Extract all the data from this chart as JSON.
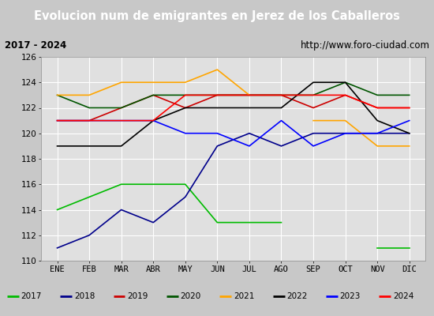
{
  "title": "Evolucion num de emigrantes en Jerez de los Caballeros",
  "subtitle_left": "2017 - 2024",
  "subtitle_right": "http://www.foro-ciudad.com",
  "months": [
    "ENE",
    "FEB",
    "MAR",
    "ABR",
    "MAY",
    "JUN",
    "JUL",
    "AGO",
    "SEP",
    "OCT",
    "NOV",
    "DIC"
  ],
  "ylim": [
    110,
    126
  ],
  "yticks": [
    110,
    112,
    114,
    116,
    118,
    120,
    122,
    124,
    126
  ],
  "series": {
    "2017": {
      "color": "#00bb00",
      "values": [
        114,
        115,
        116,
        116,
        116,
        113,
        113,
        113,
        null,
        null,
        111,
        111
      ]
    },
    "2018": {
      "color": "#00008b",
      "values": [
        111,
        112,
        114,
        113,
        115,
        119,
        120,
        119,
        120,
        120,
        120,
        120
      ]
    },
    "2019": {
      "color": "#cc0000",
      "values": [
        121,
        121,
        122,
        123,
        122,
        123,
        123,
        123,
        122,
        123,
        122,
        122
      ]
    },
    "2020": {
      "color": "#005500",
      "values": [
        123,
        122,
        122,
        123,
        123,
        123,
        123,
        123,
        123,
        124,
        123,
        123
      ]
    },
    "2021": {
      "color": "#ffa500",
      "values": [
        123,
        123,
        124,
        124,
        124,
        125,
        123,
        null,
        121,
        121,
        119,
        119
      ]
    },
    "2022": {
      "color": "#000000",
      "values": [
        119,
        119,
        119,
        121,
        122,
        122,
        122,
        122,
        124,
        124,
        121,
        120
      ]
    },
    "2023": {
      "color": "#0000ff",
      "values": [
        121,
        121,
        121,
        121,
        120,
        120,
        119,
        121,
        119,
        120,
        120,
        121
      ]
    },
    "2024": {
      "color": "#ff0000",
      "values": [
        121,
        121,
        121,
        121,
        123,
        123,
        123,
        123,
        123,
        123,
        122,
        122
      ]
    }
  },
  "background_color": "#c8c8c8",
  "plot_bg_color": "#e0e0e0",
  "title_bg_color": "#4169e1",
  "title_color": "#ffffff",
  "grid_color": "#ffffff",
  "subtitle_bg": "#e8e8e8",
  "legend_bg": "#f0f0f0"
}
